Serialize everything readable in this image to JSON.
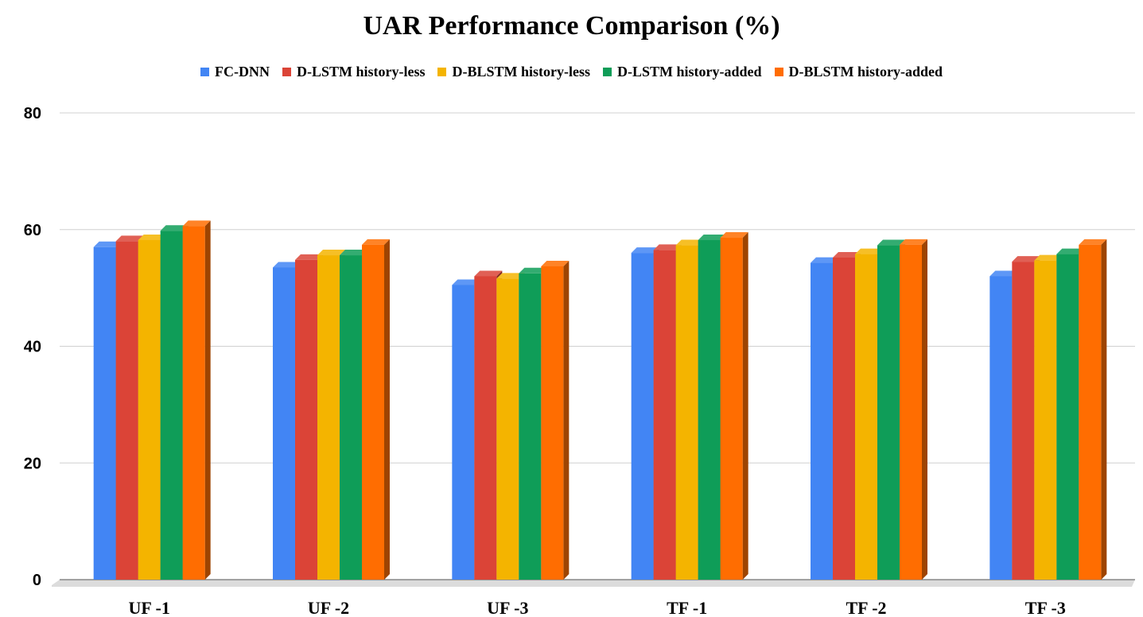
{
  "chart_data": {
    "type": "bar",
    "title": "UAR Performance Comparison (%)",
    "xlabel": "",
    "ylabel": "",
    "categories": [
      "UF -1",
      "UF -2",
      "UF -3",
      "TF -1",
      "TF -2",
      "TF -3"
    ],
    "ylim": [
      0,
      80
    ],
    "yticks": [
      "0",
      "20",
      "40",
      "60",
      "80"
    ],
    "grid": true,
    "legend_position": "top",
    "style": "3d",
    "series": [
      {
        "name": "FC-DNN",
        "color": "#4285f4",
        "values": [
          57.0,
          53.5,
          50.5,
          56.0,
          54.3,
          52.0
        ]
      },
      {
        "name": "D-LSTM history-less",
        "color": "#db4437",
        "values": [
          58.0,
          54.8,
          52.0,
          56.5,
          55.2,
          54.5
        ]
      },
      {
        "name": "D-BLSTM history-less",
        "color": "#f4b400",
        "values": [
          58.2,
          55.6,
          51.6,
          57.3,
          55.8,
          54.7
        ]
      },
      {
        "name": "D-LSTM history-added",
        "color": "#0f9d58",
        "values": [
          59.8,
          55.6,
          52.5,
          58.2,
          57.3,
          55.8
        ]
      },
      {
        "name": "D-BLSTM history-added",
        "color": "#ff6d01",
        "values": [
          60.6,
          57.4,
          53.7,
          58.6,
          57.4,
          57.4
        ]
      }
    ]
  }
}
